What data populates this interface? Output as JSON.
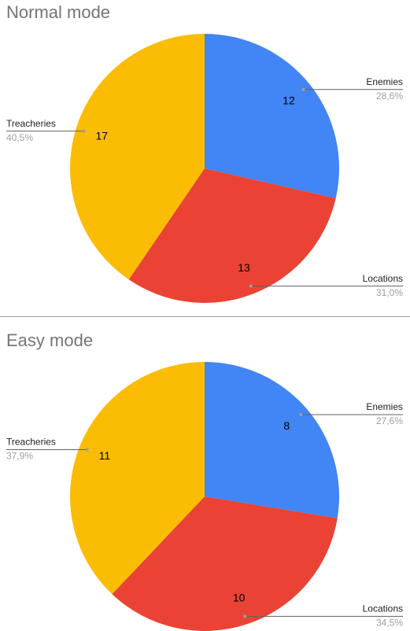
{
  "chart_data": [
    {
      "type": "pie",
      "title": "Normal mode",
      "categories": [
        "Enemies",
        "Locations",
        "Treacheries"
      ],
      "values": [
        12,
        13,
        17
      ],
      "percent_labels": [
        "28,6%",
        "31,0%",
        "40,5%"
      ],
      "colors": [
        "#4285f4",
        "#ea4335",
        "#fbbc04"
      ]
    },
    {
      "type": "pie",
      "title": "Easy mode",
      "categories": [
        "Enemies",
        "Locations",
        "Treacheries"
      ],
      "values": [
        8,
        10,
        11
      ],
      "percent_labels": [
        "27,6%",
        "34,5%",
        "37,9%"
      ],
      "colors": [
        "#4285f4",
        "#ea4335",
        "#fbbc04"
      ]
    }
  ]
}
